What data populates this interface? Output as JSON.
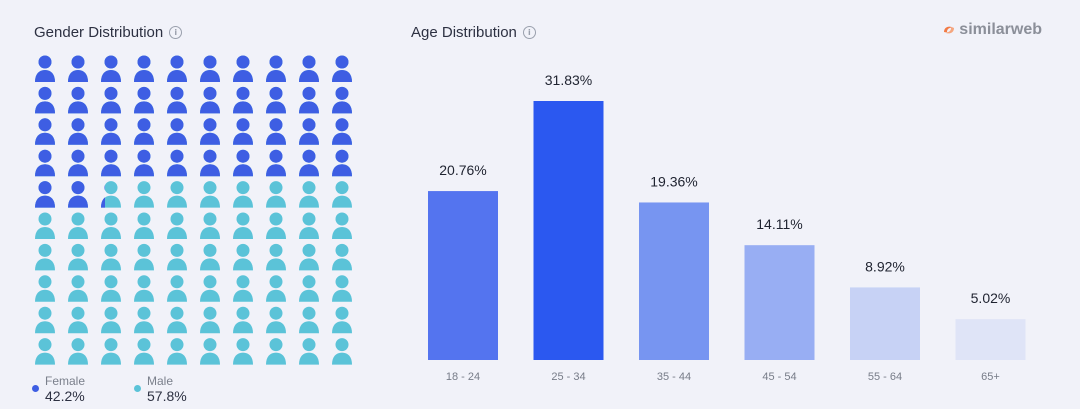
{
  "gender": {
    "title": "Gender Distribution",
    "info_icon": "info-icon",
    "icon_grid": {
      "columns": 10,
      "rows": 10,
      "icon": "person-icon"
    },
    "female": {
      "label": "Female",
      "value": "42.2%",
      "share": 0.422,
      "color": "#3e5ee3"
    },
    "male": {
      "label": "Male",
      "value": "57.8%",
      "share": 0.578,
      "color": "#5bc3d8"
    }
  },
  "age": {
    "title": "Age Distribution",
    "info_icon": "info-icon"
  },
  "brand": {
    "name": "similarweb",
    "logo_icon": "similarweb-logo-icon",
    "color": "#f27a45"
  },
  "chart_data": {
    "type": "bar",
    "categories": [
      "18 - 24",
      "25 - 34",
      "35 - 44",
      "45 - 54",
      "55 - 64",
      "65+"
    ],
    "values": [
      20.76,
      31.83,
      19.36,
      14.11,
      8.92,
      5.02
    ],
    "value_labels": [
      "20.76%",
      "31.83%",
      "19.36%",
      "14.11%",
      "8.92%",
      "5.02%"
    ],
    "title": "Age Distribution",
    "xlabel": "",
    "ylabel": "",
    "ylim": [
      0,
      31.83
    ],
    "grid": false,
    "bar_colors": [
      "#5474ef",
      "#2b58f0",
      "#7795f1",
      "#98aef3",
      "#c7d2f5",
      "#dfe4f7"
    ]
  }
}
